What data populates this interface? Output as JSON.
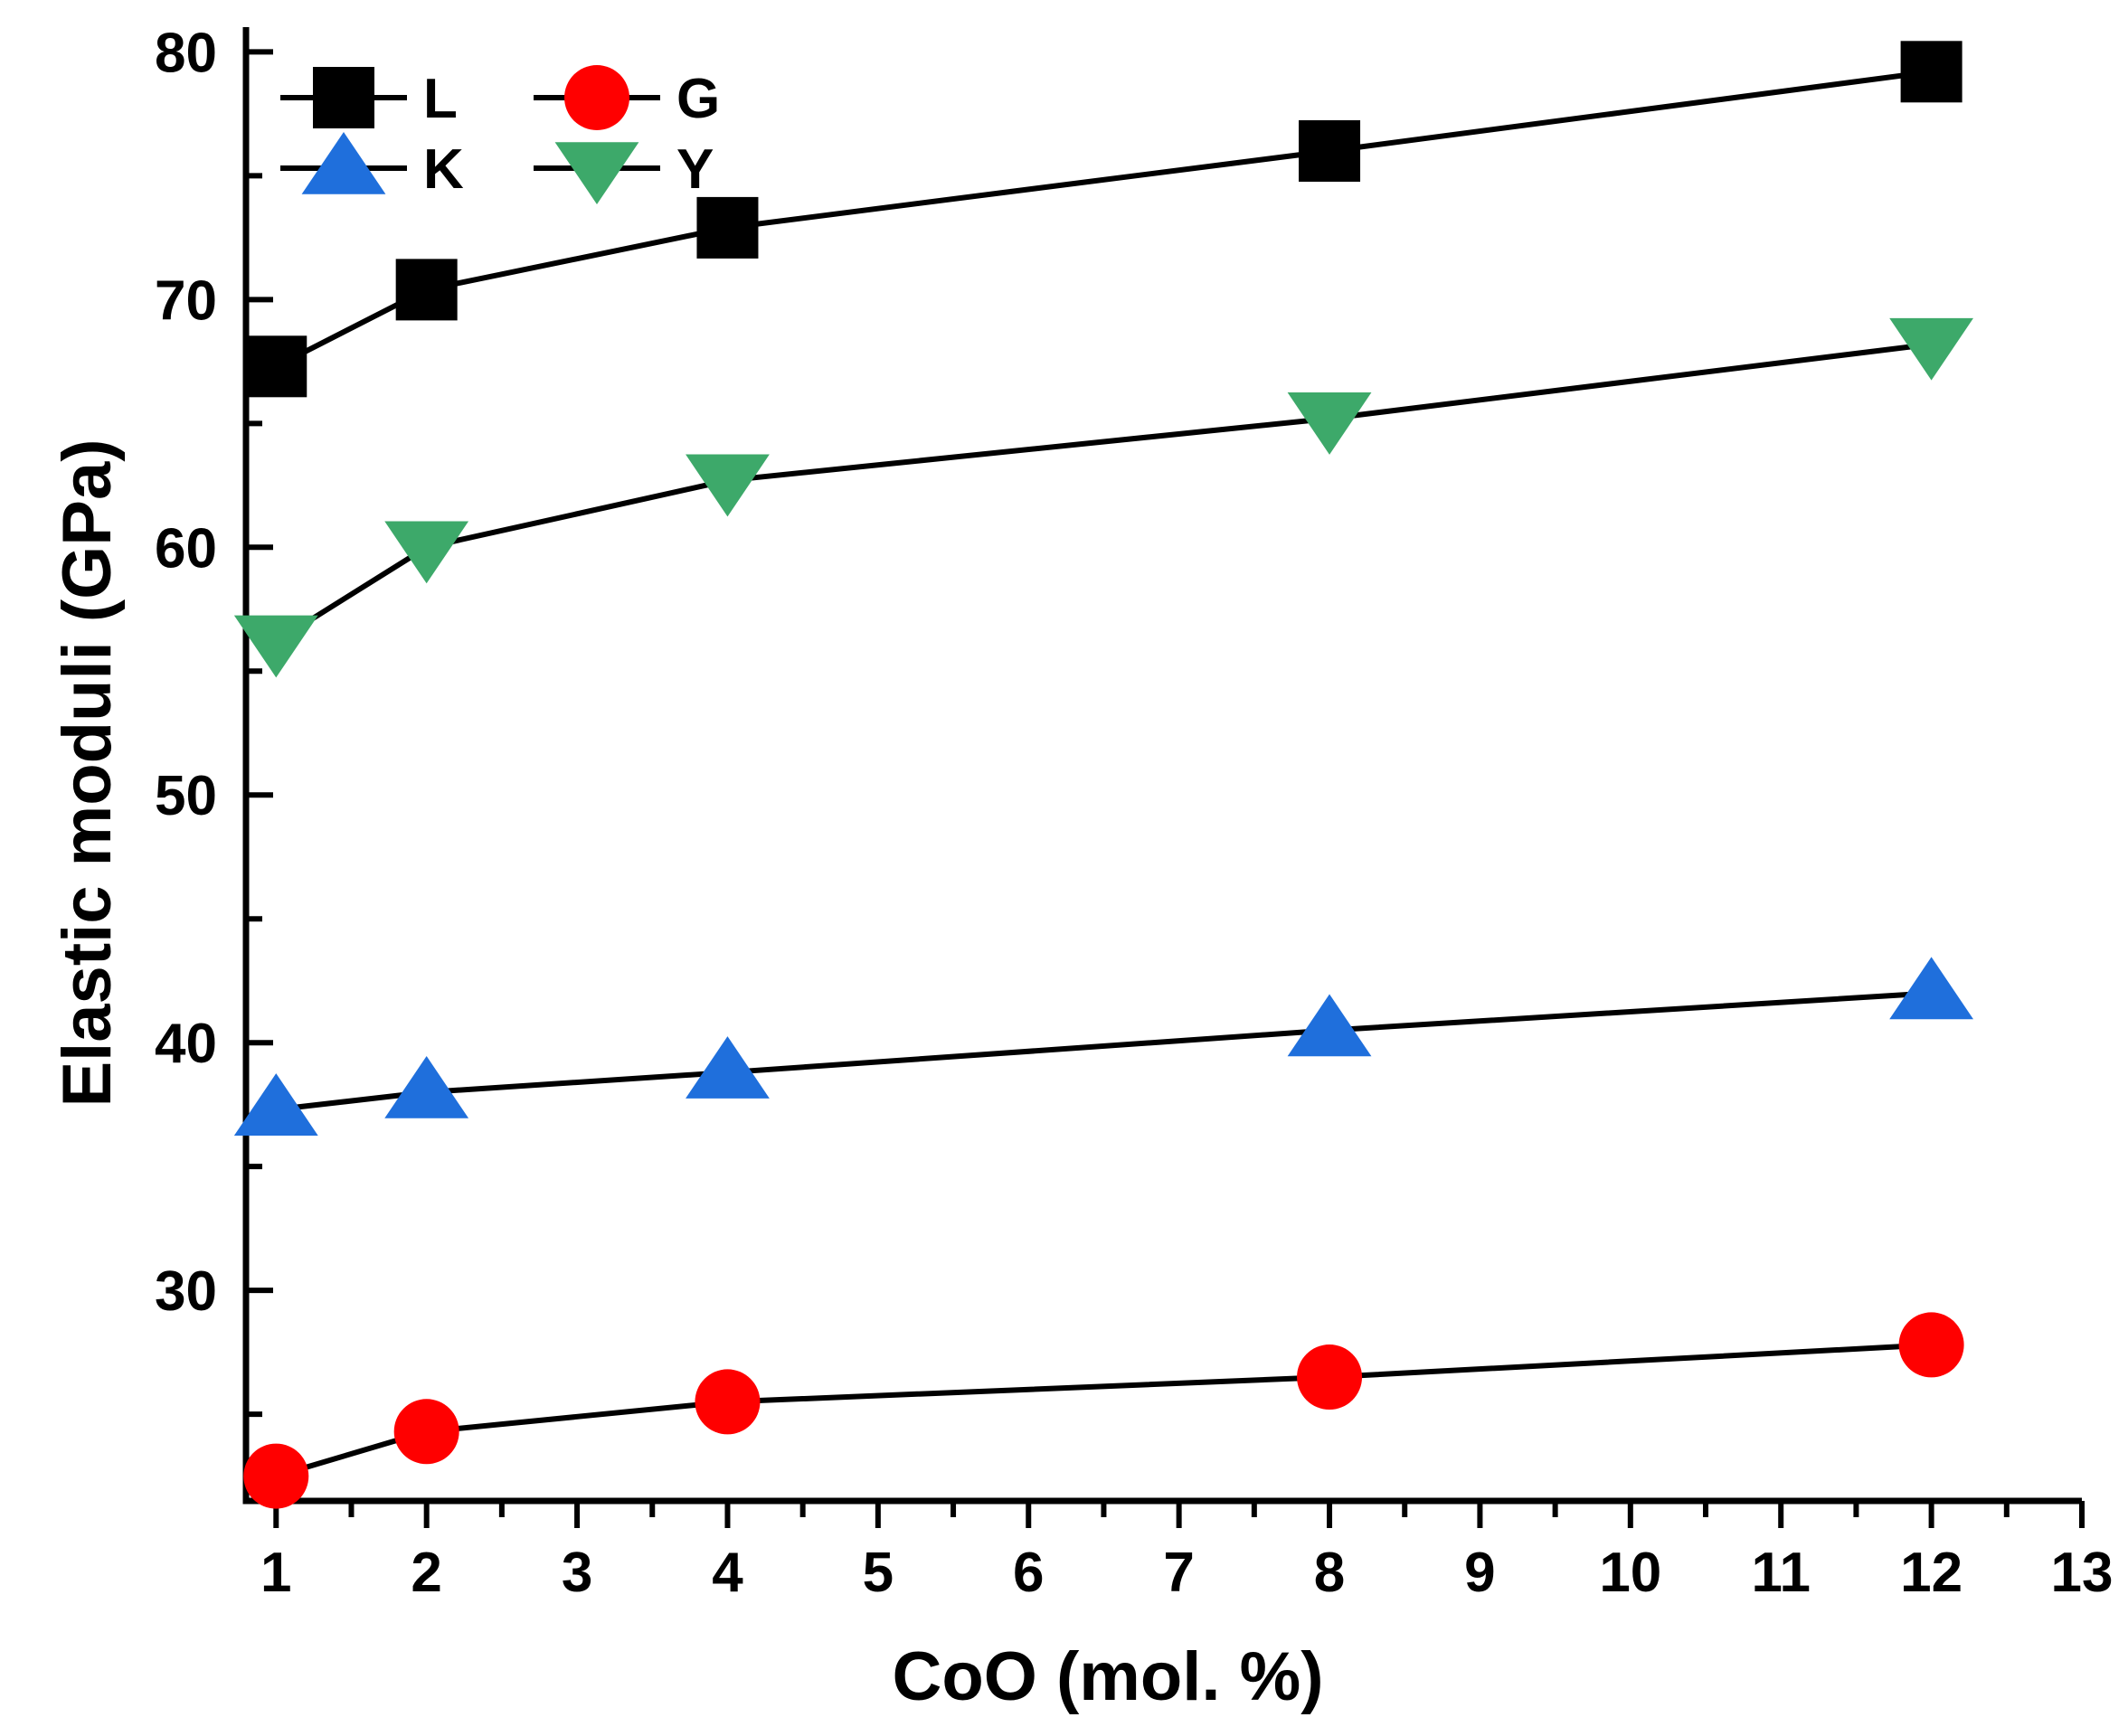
{
  "chart_data": {
    "type": "line",
    "title": "",
    "xlabel": "CoO (mol. %)",
    "ylabel": "Elastic moduli (GPa)",
    "xlim": [
      0.8,
      13
    ],
    "ylim": [
      21.5,
      81
    ],
    "x_ticks": [
      1,
      2,
      3,
      4,
      5,
      6,
      7,
      8,
      9,
      10,
      11,
      12,
      13
    ],
    "y_ticks": [
      30,
      40,
      50,
      60,
      70,
      80
    ],
    "x": [
      1,
      2,
      4,
      8,
      12
    ],
    "series": [
      {
        "name": "L",
        "marker": "square",
        "color": "#000000",
        "values": [
          67.3,
          70.4,
          72.9,
          76.0,
          79.2
        ]
      },
      {
        "name": "G",
        "marker": "circle",
        "color": "#ff0000",
        "values": [
          22.5,
          24.3,
          25.5,
          26.5,
          27.8
        ]
      },
      {
        "name": "K",
        "marker": "triangle-up",
        "color": "#1f6fdc",
        "values": [
          37.3,
          38.0,
          38.8,
          40.5,
          42.0
        ]
      },
      {
        "name": "Y",
        "marker": "triangle-down",
        "color": "#3da96a",
        "values": [
          56.2,
          60.0,
          62.7,
          65.2,
          68.2
        ]
      }
    ],
    "legend": {
      "position": "top-left",
      "columns": 2
    },
    "grid": false
  }
}
